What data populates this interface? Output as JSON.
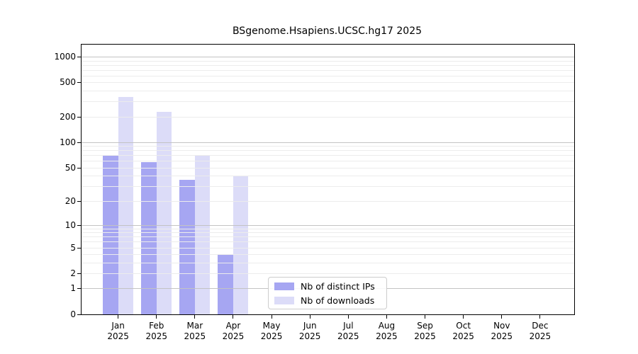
{
  "title": "BSgenome.Hsapiens.UCSC.hg17 2025",
  "legend": {
    "items": [
      {
        "label": "Nb of distinct IPs",
        "color": "#a6a6f2"
      },
      {
        "label": "Nb of downloads",
        "color": "#dcdcf8"
      }
    ]
  },
  "colors": {
    "distinct_ips": "#a6a6f2",
    "downloads": "#dcdcf8",
    "grid_major": "#c3c3c3",
    "grid_minor": "#ececec",
    "frame": "#000000",
    "background": "#ffffff"
  },
  "chart_data": {
    "type": "bar",
    "title": "BSgenome.Hsapiens.UCSC.hg17 2025",
    "categories": [
      "Jan 2025",
      "Feb 2025",
      "Mar 2025",
      "Apr 2025",
      "May 2025",
      "Jun 2025",
      "Jul 2025",
      "Aug 2025",
      "Sep 2025",
      "Oct 2025",
      "Nov 2025",
      "Dec 2025"
    ],
    "month_labels": [
      "Jan",
      "Feb",
      "Mar",
      "Apr",
      "May",
      "Jun",
      "Jul",
      "Aug",
      "Sep",
      "Oct",
      "Nov",
      "Dec"
    ],
    "year_label": "2025",
    "series": [
      {
        "name": "Nb of distinct IPs",
        "color": "#a6a6f2",
        "values": [
          70,
          58,
          36,
          4,
          0,
          0,
          0,
          0,
          0,
          0,
          0,
          0
        ]
      },
      {
        "name": "Nb of downloads",
        "color": "#dcdcf8",
        "values": [
          340,
          228,
          70,
          40,
          0,
          0,
          0,
          0,
          0,
          0,
          0,
          0
        ]
      }
    ],
    "xlabel": "",
    "ylabel": "",
    "y_scale": "log10(1+v)",
    "y_ticks": [
      0,
      1,
      2,
      5,
      10,
      20,
      50,
      100,
      200,
      500,
      1000
    ],
    "ylim": [
      0,
      1400
    ],
    "grid": {
      "on": true,
      "major": [
        1,
        10,
        100,
        1000
      ],
      "minor": [
        2,
        3,
        4,
        5,
        6,
        7,
        8,
        9,
        20,
        30,
        40,
        50,
        60,
        70,
        80,
        90,
        200,
        300,
        400,
        500,
        600,
        700,
        800,
        900
      ]
    },
    "legend_position": "inside-bottom-center",
    "bar_layout": "paired: distinct-IPs bar left of month tick, downloads bar right of month tick"
  }
}
